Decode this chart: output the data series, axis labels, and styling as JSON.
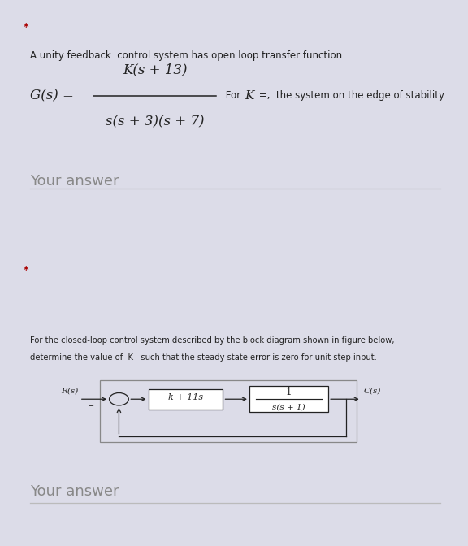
{
  "bg_color": "#dcdce8",
  "card_color": "#ffffff",
  "star_color": "#aa0000",
  "text_color": "#222222",
  "gray_text": "#888888",
  "line_color": "#bbbbbb",
  "panel1": {
    "star": "*",
    "intro_text": "A unity feedback  control system has open loop transfer function",
    "gs_label": "G(s) =",
    "numerator": "K(s + 13)",
    "denominator": "s(s + 3)(s + 7)",
    "for_k_text": ".For K =,  the system on the edge of stability",
    "your_answer": "Your answer"
  },
  "panel2": {
    "star": "*",
    "desc1": "For the closed-loop control system described by the block diagram shown in figure below,",
    "desc2": "determine the value of  K   such that the steady state error is zero for unit step input.",
    "block1_label": "k + 11s",
    "block2_num": "1",
    "block2_den": "s(s + 1)",
    "R_label": "R(s)",
    "C_label": "C(s)",
    "your_answer": "Your answer"
  }
}
